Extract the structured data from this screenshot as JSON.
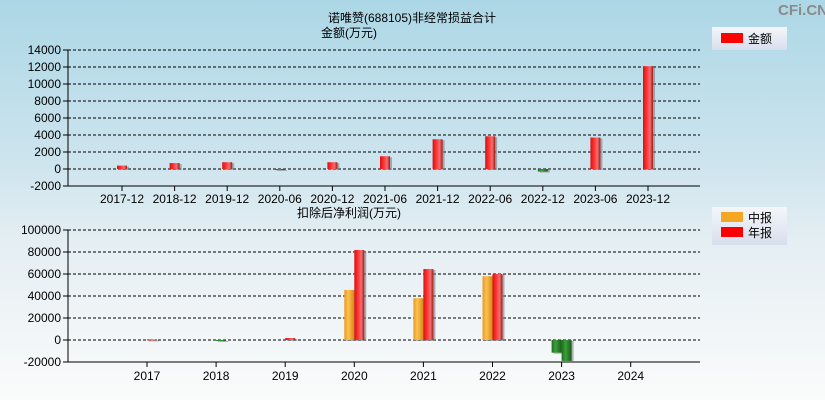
{
  "watermark": "CFi.CN",
  "colors": {
    "positive": "#ff2020",
    "negative": "#2e8b2e",
    "interim": "#f5a623",
    "annual": "#ff0000"
  },
  "chart_data": [
    {
      "type": "bar",
      "title": "诺唯赞(688105)非经常损益合计",
      "ylabel": "金额(万元)",
      "ylim": [
        -2000,
        14000
      ],
      "yticks": [
        -2000,
        0,
        2000,
        4000,
        6000,
        8000,
        10000,
        12000,
        14000
      ],
      "grid": true,
      "legend_position": "top-right",
      "categories": [
        "2017-12",
        "2018-12",
        "2019-12",
        "2020-06",
        "2020-12",
        "2021-06",
        "2021-12",
        "2022-06",
        "2022-12",
        "2023-06",
        "2023-12"
      ],
      "series": [
        {
          "name": "金额",
          "values": [
            400,
            700,
            800,
            -80,
            800,
            1500,
            3500,
            3850,
            -300,
            3700,
            12100
          ]
        }
      ]
    },
    {
      "type": "bar",
      "ylabel": "扣除后净利润(万元)",
      "ylim": [
        -20000,
        100000
      ],
      "yticks": [
        -20000,
        0,
        20000,
        40000,
        60000,
        80000,
        100000
      ],
      "grid": true,
      "legend_position": "top-right",
      "categories": [
        "2017",
        "2018",
        "2019",
        "2020",
        "2021",
        "2022",
        "2023",
        "2024"
      ],
      "series": [
        {
          "name": "中报",
          "values": [
            null,
            null,
            null,
            45500,
            38000,
            58000,
            -11500,
            null
          ]
        },
        {
          "name": "年报",
          "values": [
            600,
            -500,
            1800,
            81800,
            64500,
            60000,
            -19000,
            null
          ]
        }
      ]
    }
  ]
}
